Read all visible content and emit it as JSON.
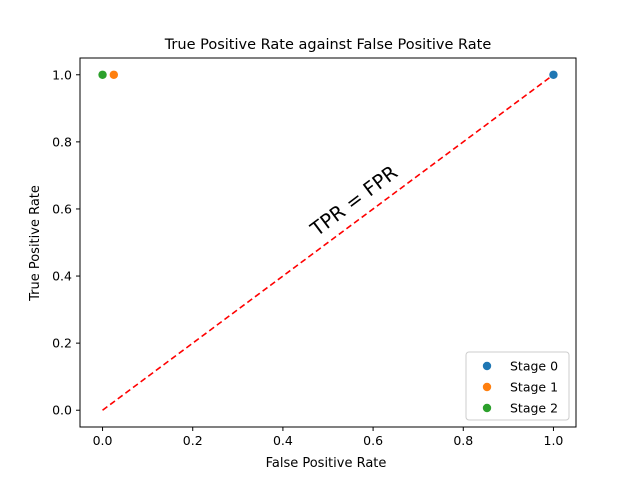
{
  "chart_data": {
    "type": "scatter",
    "title": "True Positive Rate against False Positive Rate",
    "xlabel": "False Positive Rate",
    "ylabel": "True Positive Rate",
    "xlim": [
      -0.05,
      1.05
    ],
    "ylim": [
      -0.05,
      1.05
    ],
    "xticks": [
      0.0,
      0.2,
      0.4,
      0.6,
      0.8,
      1.0
    ],
    "xtick_labels": [
      "0.0",
      "0.2",
      "0.4",
      "0.6",
      "0.8",
      "1.0"
    ],
    "yticks": [
      0.0,
      0.2,
      0.4,
      0.6,
      0.8,
      1.0
    ],
    "ytick_labels": [
      "0.0",
      "0.2",
      "0.4",
      "0.6",
      "0.8",
      "1.0"
    ],
    "grid": false,
    "legend_position": "bottom-right",
    "series": [
      {
        "name": "Stage 0",
        "color": "#1f77b4",
        "points": [
          {
            "x": 1.0,
            "y": 1.0
          }
        ]
      },
      {
        "name": "Stage 1",
        "color": "#ff7f0e",
        "points": [
          {
            "x": 0.025,
            "y": 1.0
          }
        ]
      },
      {
        "name": "Stage 2",
        "color": "#2ca02c",
        "points": [
          {
            "x": 0.0,
            "y": 1.0
          }
        ]
      }
    ],
    "reference_line": {
      "label": "TPR = FPR",
      "color": "#ff0000",
      "style": "dashed",
      "x": [
        0.0,
        1.0
      ],
      "y": [
        0.0,
        1.0
      ]
    }
  }
}
